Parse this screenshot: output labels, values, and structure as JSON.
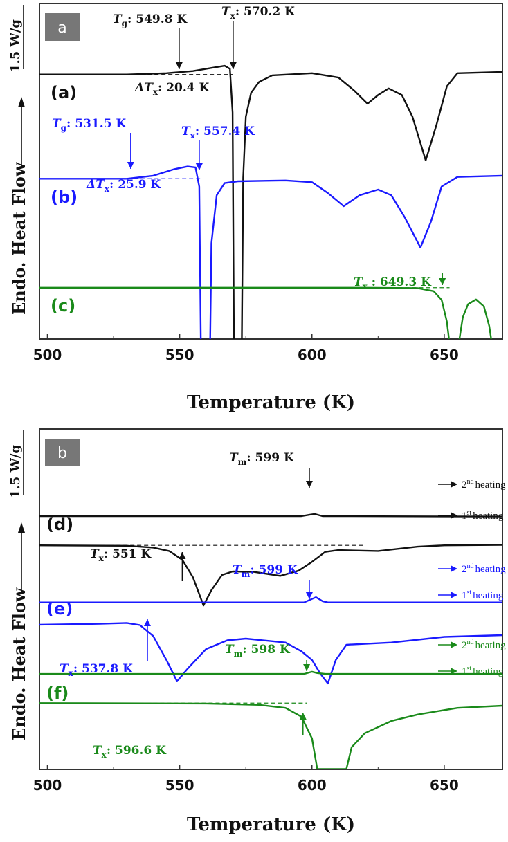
{
  "chart_data": [
    {
      "type": "line",
      "panel_label": "a",
      "xlabel": "Temperature (K)",
      "ylabel": "Endo. Heat Flow",
      "ylabel_arrow": "→",
      "scale_bar": "1.5 W/g",
      "xlim": [
        497,
        672
      ],
      "ylim": [
        -7.8,
        0
      ],
      "xticks": [
        500,
        550,
        600,
        650
      ],
      "xtick_labels": [
        "500",
        "550",
        "600",
        "650"
      ],
      "grid": false,
      "series": [
        {
          "name": "(a)",
          "color": "#111111",
          "points": [
            [
              497,
              -1.63
            ],
            [
              530,
              -1.63
            ],
            [
              545,
              -1.6
            ],
            [
              555,
              -1.55
            ],
            [
              562,
              -1.48
            ],
            [
              567,
              -1.43
            ],
            [
              569,
              -1.5
            ],
            [
              570,
              -2.5
            ],
            [
              570.5,
              -7.8
            ],
            [
              573.5,
              -7.8
            ],
            [
              574,
              -4
            ],
            [
              575,
              -2.6
            ],
            [
              577,
              -2.05
            ],
            [
              580,
              -1.8
            ],
            [
              585,
              -1.65
            ],
            [
              600,
              -1.6
            ],
            [
              610,
              -1.7
            ],
            [
              616,
              -2.0
            ],
            [
              621,
              -2.3
            ],
            [
              625,
              -2.1
            ],
            [
              629,
              -1.95
            ],
            [
              634,
              -2.1
            ],
            [
              638,
              -2.6
            ],
            [
              643,
              -3.6
            ],
            [
              647,
              -2.8
            ],
            [
              651,
              -1.9
            ],
            [
              655,
              -1.6
            ],
            [
              672,
              -1.57
            ]
          ]
        },
        {
          "name": "(b)",
          "color": "#1a1aff",
          "points": [
            [
              497,
              -4.02
            ],
            [
              530,
              -4.02
            ],
            [
              540,
              -3.95
            ],
            [
              548,
              -3.8
            ],
            [
              553,
              -3.74
            ],
            [
              556,
              -3.76
            ],
            [
              557.4,
              -4.2
            ],
            [
              558,
              -7.8
            ],
            [
              561.5,
              -7.8
            ],
            [
              562,
              -5.5
            ],
            [
              564,
              -4.4
            ],
            [
              567,
              -4.12
            ],
            [
              572,
              -4.08
            ],
            [
              590,
              -4.06
            ],
            [
              600,
              -4.1
            ],
            [
              606,
              -4.35
            ],
            [
              612,
              -4.65
            ],
            [
              618,
              -4.4
            ],
            [
              625,
              -4.27
            ],
            [
              630,
              -4.4
            ],
            [
              635,
              -4.9
            ],
            [
              641,
              -5.6
            ],
            [
              645,
              -5.0
            ],
            [
              649,
              -4.2
            ],
            [
              655,
              -3.98
            ],
            [
              672,
              -3.95
            ]
          ]
        },
        {
          "name": "(c)",
          "color": "#1a8a1a",
          "points": [
            [
              497,
              -6.52
            ],
            [
              620,
              -6.52
            ],
            [
              640,
              -6.53
            ],
            [
              646,
              -6.6
            ],
            [
              649,
              -6.8
            ],
            [
              651,
              -7.3
            ],
            [
              652,
              -7.8
            ],
            [
              655.5,
              -7.8
            ],
            [
              657,
              -7.2
            ],
            [
              659,
              -6.9
            ],
            [
              662,
              -6.79
            ],
            [
              665,
              -6.95
            ],
            [
              667,
              -7.4
            ],
            [
              668,
              -7.8
            ],
            [
              672,
              -7.8
            ]
          ]
        }
      ],
      "annotations": [
        {
          "symbol": "T",
          "sub": "g",
          "value": ": 549.8 K",
          "at": 549.8,
          "color": "#111111"
        },
        {
          "symbol": "T",
          "sub": "x",
          "value": ": 570.2 K",
          "at": 570.2,
          "color": "#111111"
        },
        {
          "symbol": "ΔT",
          "sub": "x",
          "value": ": 20.4 K",
          "color": "#111111"
        },
        {
          "symbol": "T",
          "sub": "g",
          "value": ": 531.5 K",
          "at": 531.5,
          "color": "#1a1aff"
        },
        {
          "symbol": "T",
          "sub": "x",
          "value": ": 557.4 K",
          "at": 557.4,
          "color": "#1a1aff"
        },
        {
          "symbol": "ΔT",
          "sub": "x",
          "value": ": 25.9 K",
          "color": "#1a1aff"
        },
        {
          "symbol": "T",
          "sub": "x",
          "value": " : 649.3 K",
          "at": 649.3,
          "color": "#1a8a1a"
        }
      ]
    },
    {
      "type": "line",
      "panel_label": "b",
      "xlabel": "Temperature (K)",
      "ylabel": "Endo. Heat Flow",
      "ylabel_arrow": "→",
      "scale_bar": "1.5 W/g",
      "xlim": [
        497,
        672
      ],
      "ylim": [
        -7.8,
        0
      ],
      "xticks": [
        500,
        550,
        600,
        650
      ],
      "xtick_labels": [
        "500",
        "550",
        "600",
        "650"
      ],
      "grid": false,
      "series": [
        {
          "name": "(d) 2nd heating",
          "color": "#111111",
          "points": [
            [
              497,
              -2.0
            ],
            [
              596,
              -2.0
            ],
            [
              599,
              -1.97
            ],
            [
              601,
              -1.95
            ],
            [
              604,
              -2.0
            ],
            [
              672,
              -2.01
            ]
          ]
        },
        {
          "name": "(d)",
          "color": "#111111",
          "points": [
            [
              497,
              -2.67
            ],
            [
              530,
              -2.68
            ],
            [
              540,
              -2.72
            ],
            [
              546,
              -2.8
            ],
            [
              551,
              -3.0
            ],
            [
              555,
              -3.4
            ],
            [
              559,
              -4.05
            ],
            [
              562,
              -3.7
            ],
            [
              566,
              -3.35
            ],
            [
              570,
              -3.27
            ],
            [
              578,
              -3.28
            ],
            [
              588,
              -3.37
            ],
            [
              595,
              -3.25
            ],
            [
              600,
              -3.05
            ],
            [
              605,
              -2.82
            ],
            [
              610,
              -2.78
            ],
            [
              625,
              -2.8
            ],
            [
              640,
              -2.7
            ],
            [
              650,
              -2.67
            ],
            [
              672,
              -2.66
            ]
          ]
        },
        {
          "name": "(e) 2nd heating",
          "color": "#1a1aff",
          "points": [
            [
              497,
              -3.98
            ],
            [
              597,
              -3.98
            ],
            [
              600,
              -3.9
            ],
            [
              601.5,
              -3.86
            ],
            [
              604,
              -3.95
            ],
            [
              606,
              -3.98
            ],
            [
              672,
              -3.98
            ]
          ]
        },
        {
          "name": "(e)",
          "color": "#1a1aff",
          "points": [
            [
              497,
              -4.49
            ],
            [
              520,
              -4.47
            ],
            [
              530,
              -4.45
            ],
            [
              535,
              -4.5
            ],
            [
              540,
              -4.75
            ],
            [
              545,
              -5.3
            ],
            [
              549,
              -5.79
            ],
            [
              553,
              -5.5
            ],
            [
              560,
              -5.05
            ],
            [
              568,
              -4.85
            ],
            [
              575,
              -4.81
            ],
            [
              590,
              -4.9
            ],
            [
              596,
              -5.1
            ],
            [
              600,
              -5.3
            ],
            [
              603,
              -5.6
            ],
            [
              606,
              -5.84
            ],
            [
              609,
              -5.3
            ],
            [
              613,
              -4.95
            ],
            [
              630,
              -4.9
            ],
            [
              650,
              -4.77
            ],
            [
              672,
              -4.73
            ]
          ]
        },
        {
          "name": "(f) 2nd heating",
          "color": "#1a8a1a",
          "points": [
            [
              497,
              -5.62
            ],
            [
              597,
              -5.62
            ],
            [
              600,
              -5.57
            ],
            [
              602,
              -5.6
            ],
            [
              605,
              -5.62
            ],
            [
              672,
              -5.62
            ]
          ]
        },
        {
          "name": "(f)",
          "color": "#1a8a1a",
          "points": [
            [
              497,
              -6.29
            ],
            [
              560,
              -6.3
            ],
            [
              580,
              -6.33
            ],
            [
              590,
              -6.4
            ],
            [
              596,
              -6.6
            ],
            [
              600,
              -7.1
            ],
            [
              602,
              -7.8
            ],
            [
              613,
              -7.8
            ],
            [
              615,
              -7.3
            ],
            [
              620,
              -6.98
            ],
            [
              630,
              -6.7
            ],
            [
              640,
              -6.55
            ],
            [
              655,
              -6.4
            ],
            [
              672,
              -6.35
            ]
          ]
        }
      ],
      "annotations": [
        {
          "symbol": "T",
          "sub": "m",
          "value": ": 599 K",
          "at": 599,
          "color": "#111111"
        },
        {
          "symbol": "T",
          "sub": "x",
          "value": ": 551 K",
          "at": 551,
          "color": "#111111"
        },
        {
          "symbol": "T",
          "sub": "m",
          "value": ": 599 K",
          "at": 599,
          "color": "#1a1aff"
        },
        {
          "symbol": "T",
          "sub": "x",
          "value": ": 537.8 K",
          "at": 537.8,
          "color": "#1a1aff"
        },
        {
          "symbol": "T",
          "sub": "m",
          "value": ": 598 K",
          "at": 598,
          "color": "#1a8a1a"
        },
        {
          "symbol": "T",
          "sub": "x",
          "value": ": 596.6 K",
          "at": 596.6,
          "color": "#1a8a1a"
        }
      ],
      "heating_labels": [
        {
          "ordinal": "2",
          "sup": "nd",
          "text": "heating",
          "color": "#111111"
        },
        {
          "ordinal": "1",
          "sup": "st",
          "text": "heating",
          "color": "#111111"
        },
        {
          "ordinal": "2",
          "sup": "nd",
          "text": "heating",
          "color": "#1a1aff"
        },
        {
          "ordinal": "1",
          "sup": "st",
          "text": "heating",
          "color": "#1a1aff"
        },
        {
          "ordinal": "2",
          "sup": "nd",
          "text": "heating",
          "color": "#1a8a1a"
        },
        {
          "ordinal": "1",
          "sup": "st",
          "text": "heating",
          "color": "#1a8a1a"
        }
      ],
      "curve_labels": [
        "(d)",
        "(e)",
        "(f)"
      ]
    }
  ],
  "curve_labels_a": [
    "(a)",
    "(b)",
    "(c)"
  ]
}
